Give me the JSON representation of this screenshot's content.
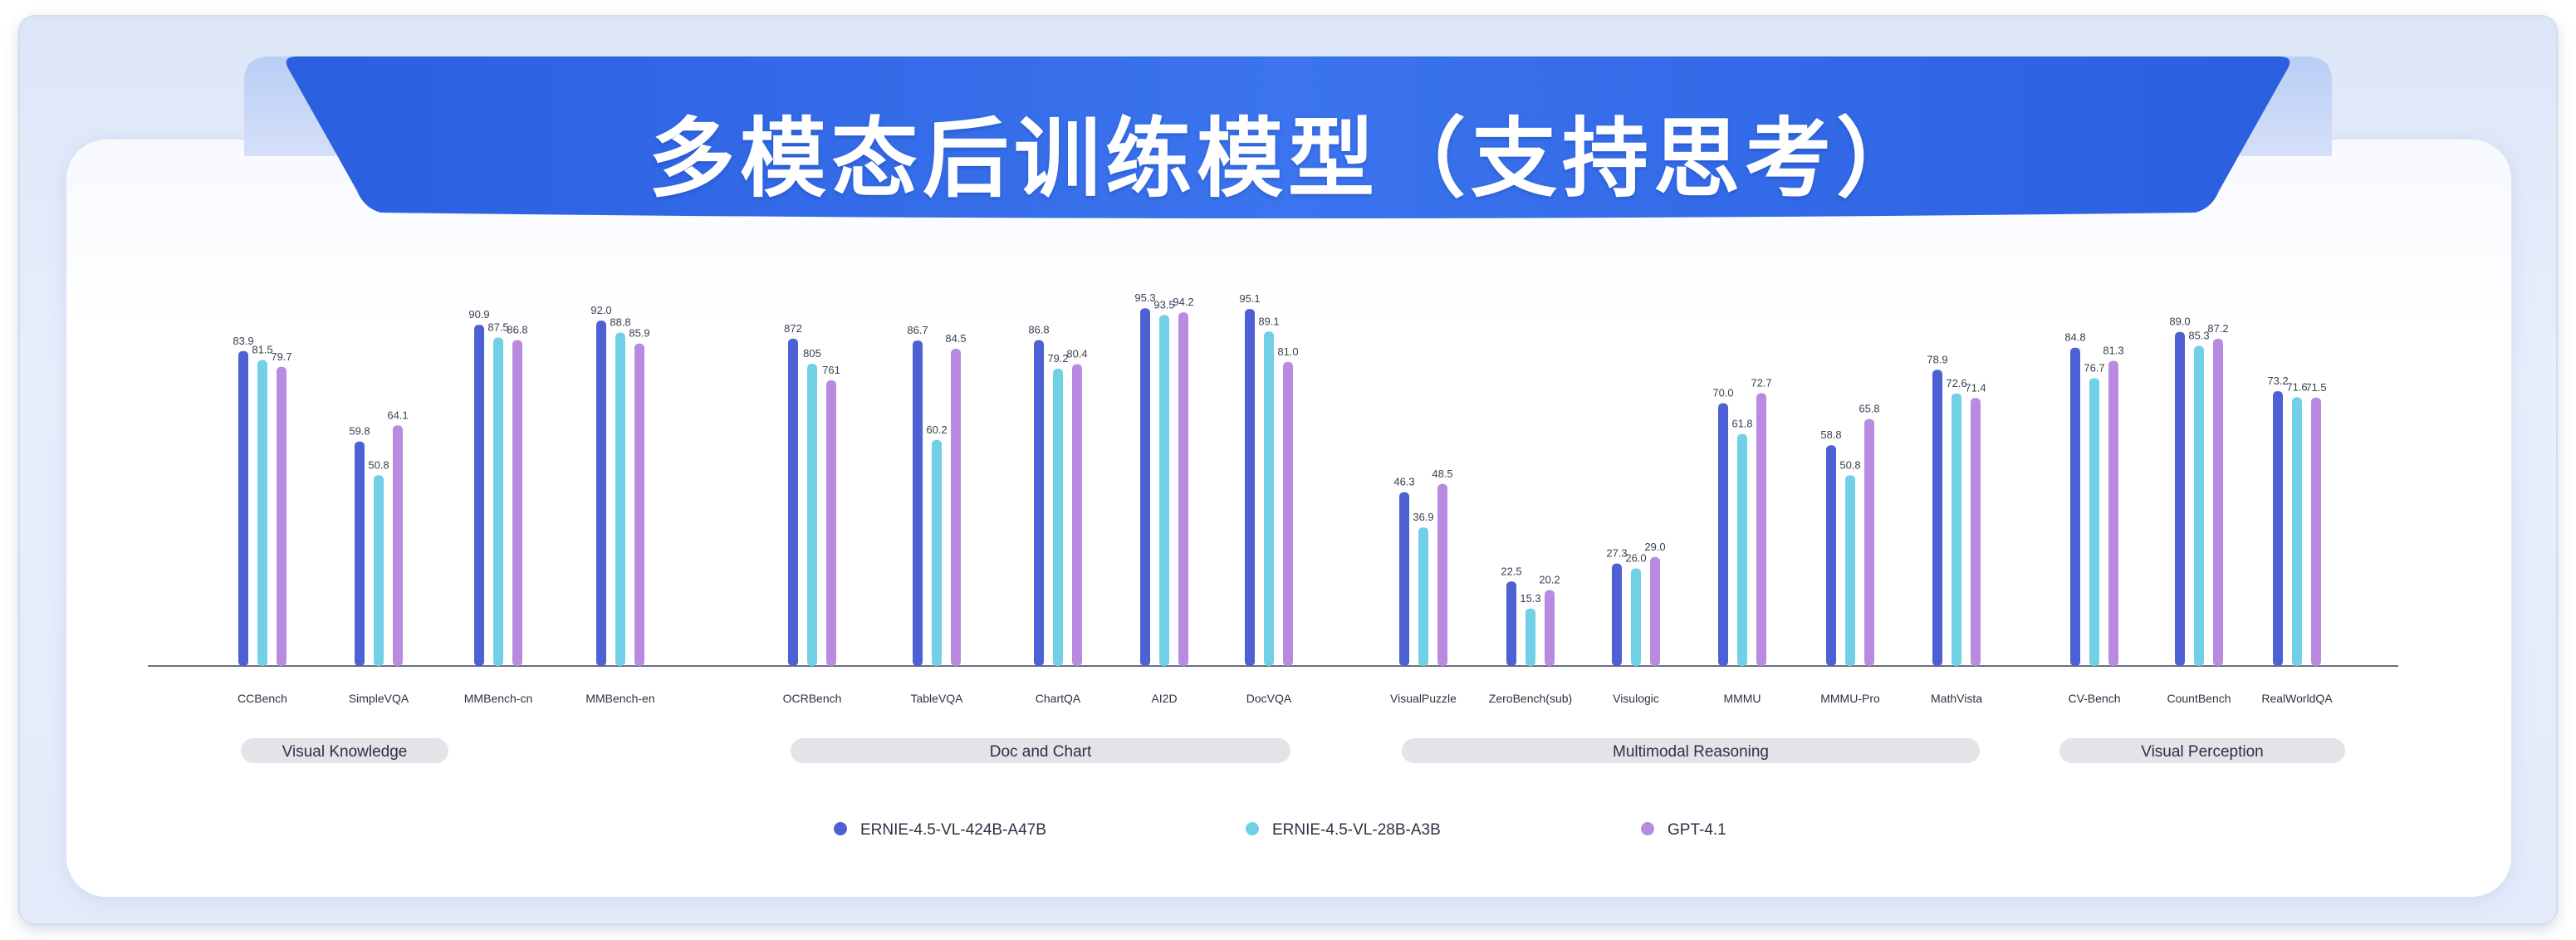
{
  "title": "多模态后训练模型（支持思考）",
  "colors": {
    "banner": "#2f67e6",
    "series": [
      "#4d60d4",
      "#6fd0e6",
      "#b98be0"
    ]
  },
  "chart_data": {
    "type": "bar",
    "ylim": [
      0,
      100
    ],
    "grid": false,
    "legend_position": "bottom",
    "series_names": [
      "ERNIE-4.5-VL-424B-A47B",
      "ERNIE-4.5-VL-28B-A3B",
      "GPT-4.1"
    ],
    "groups": [
      {
        "name": "Visual Knowledge",
        "categories": [
          {
            "label": "CCBench",
            "values": [
              83.9,
              81.5,
              79.7
            ]
          },
          {
            "label": "SimpleVQA",
            "values": [
              59.8,
              50.8,
              64.1
            ]
          },
          {
            "label": "MMBench-cn",
            "values": [
              90.9,
              87.5,
              86.8
            ]
          },
          {
            "label": "MMBench-en",
            "values": [
              92.0,
              88.8,
              85.9
            ]
          }
        ]
      },
      {
        "name": "Doc and Chart",
        "categories": [
          {
            "label": "OCRBench",
            "values": [
              872,
              805,
              761
            ]
          },
          {
            "label": "TableVQA",
            "values": [
              86.7,
              60.2,
              84.5
            ]
          },
          {
            "label": "ChartQA",
            "values": [
              86.8,
              79.2,
              80.4
            ]
          },
          {
            "label": "AI2D",
            "values": [
              95.3,
              93.5,
              94.2
            ]
          },
          {
            "label": "DocVQA",
            "values": [
              95.1,
              89.1,
              81.0
            ]
          }
        ]
      },
      {
        "name": "Multimodal Reasoning",
        "categories": [
          {
            "label": "VisualPuzzle",
            "values": [
              46.3,
              36.9,
              48.5
            ]
          },
          {
            "label": "ZeroBench(sub)",
            "values": [
              22.5,
              15.3,
              20.2
            ]
          },
          {
            "label": "Visulogic",
            "values": [
              27.3,
              26.0,
              29.0
            ]
          },
          {
            "label": "MMMU",
            "values": [
              70.0,
              61.8,
              72.7
            ]
          },
          {
            "label": "MMMU-Pro",
            "values": [
              58.8,
              50.8,
              65.8
            ]
          },
          {
            "label": "MathVista",
            "values": [
              78.9,
              72.6,
              71.4
            ]
          }
        ]
      },
      {
        "name": "Visual Perception",
        "categories": [
          {
            "label": "CV-Bench",
            "values": [
              84.8,
              76.7,
              81.3
            ]
          },
          {
            "label": "CountBench",
            "values": [
              89.0,
              85.3,
              87.2
            ]
          },
          {
            "label": "RealWorldQA",
            "values": [
              73.2,
              71.6,
              71.5
            ]
          }
        ]
      }
    ]
  }
}
